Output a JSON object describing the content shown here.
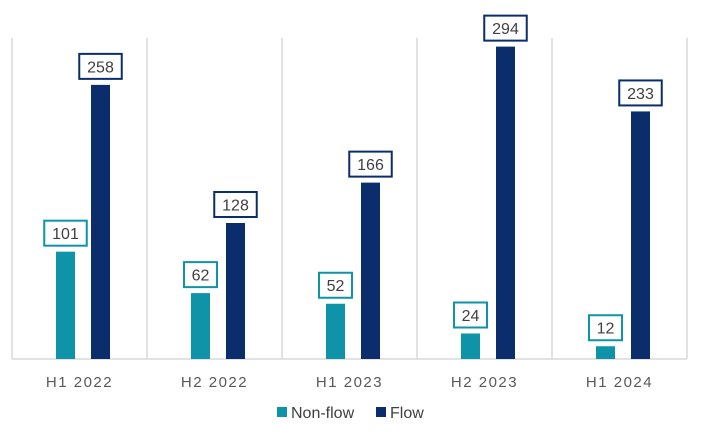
{
  "chart_data": {
    "type": "bar",
    "categories": [
      "H1 2022",
      "H2 2022",
      "H1 2023",
      "H2 2023",
      "H1 2024"
    ],
    "series": [
      {
        "name": "Non-flow",
        "color": "#0E93A8",
        "label_border": "#0E93A8",
        "values": [
          101,
          62,
          52,
          24,
          12
        ]
      },
      {
        "name": "Flow",
        "color": "#0B2D6B",
        "label_border": "#0B2D6B",
        "values": [
          258,
          128,
          166,
          294,
          233
        ]
      }
    ],
    "ylim": [
      0,
      300
    ],
    "grid": "vertical category separators",
    "legend_position": "bottom",
    "data_labels": true
  }
}
